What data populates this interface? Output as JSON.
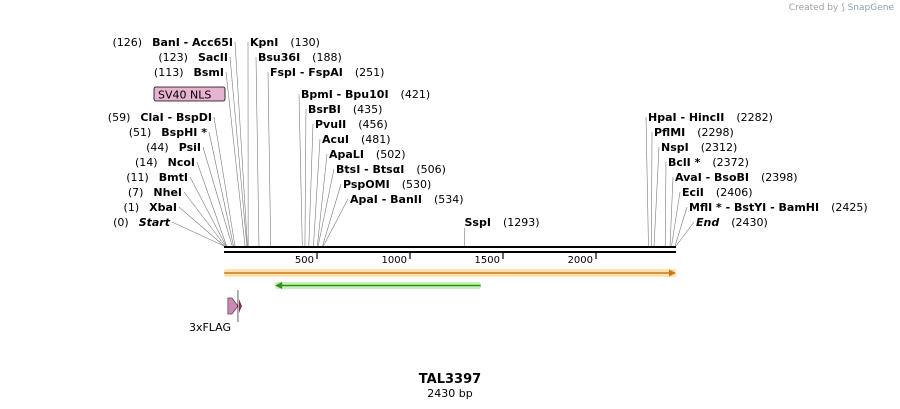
{
  "credit": {
    "prefix": "Created by",
    "brand": "SnapGene",
    "icon": "snapgene-logo-icon"
  },
  "title": "TAL3397",
  "length_label": "2430 bp",
  "sequence_length": 2430,
  "ruler_ticks": [
    "500",
    "1000",
    "1500",
    "2000"
  ],
  "feature_labels": {
    "nls": "SV40 NLS",
    "flag": "3xFLAG"
  },
  "features": [
    {
      "name": "SV40 NLS",
      "type": "NLS",
      "color": "#e8b3d0",
      "start": 99,
      "end": 119
    },
    {
      "name": "3xFLAG",
      "type": "tag",
      "color": "#c889b2",
      "start": 10,
      "end": 75,
      "direction": "forward"
    },
    {
      "name": "",
      "type": "ORF",
      "color": "#f5a623",
      "start": 1,
      "end": 2430,
      "direction": "forward"
    },
    {
      "name": "",
      "type": "ORF",
      "color": "#4fc226",
      "start": 275,
      "end": 1380,
      "direction": "reverse"
    }
  ],
  "left_sites": [
    {
      "name": "BanI",
      "name2": "Acc65I",
      "position": 126,
      "pos_label": "(126)"
    },
    {
      "name": "SacII",
      "position": 123,
      "pos_label": "(123)"
    },
    {
      "name": "BsmI",
      "position": 113,
      "pos_label": "(113)"
    },
    {
      "name": "ClaI",
      "name2": "BspDI",
      "position": 59,
      "pos_label": "(59)"
    },
    {
      "name": "BspHI",
      "star": "*",
      "position": 51,
      "pos_label": "(51)"
    },
    {
      "name": "PsiI",
      "position": 44,
      "pos_label": "(44)"
    },
    {
      "name": "NcoI",
      "position": 14,
      "pos_label": "(14)"
    },
    {
      "name": "BmtI",
      "position": 11,
      "pos_label": "(11)"
    },
    {
      "name": "NheI",
      "position": 7,
      "pos_label": "(7)"
    },
    {
      "name": "XbaI",
      "position": 1,
      "pos_label": "(1)"
    },
    {
      "name": "Start",
      "position": 0,
      "pos_label": "(0)",
      "italic": true
    }
  ],
  "right_sites": [
    {
      "name": "KpnI",
      "position": 130,
      "pos_label": "(130)"
    },
    {
      "name": "Bsu36I",
      "position": 188,
      "pos_label": "(188)"
    },
    {
      "name": "FspI",
      "name2": "FspAI",
      "position": 251,
      "pos_label": "(251)"
    },
    {
      "name": "BpmI",
      "name2": "Bpu10I",
      "position": 421,
      "pos_label": "(421)"
    },
    {
      "name": "BsrBI",
      "position": 435,
      "pos_label": "(435)"
    },
    {
      "name": "PvuII",
      "position": 456,
      "pos_label": "(456)"
    },
    {
      "name": "AcuI",
      "position": 481,
      "pos_label": "(481)"
    },
    {
      "name": "ApaLI",
      "position": 502,
      "pos_label": "(502)"
    },
    {
      "name": "BtsI",
      "name2": "BtsαI",
      "position": 506,
      "pos_label": "(506)"
    },
    {
      "name": "PspOMI",
      "position": 530,
      "pos_label": "(530)"
    },
    {
      "name": "ApaI",
      "name2": "BanII",
      "position": 534,
      "pos_label": "(534)"
    },
    {
      "name": "SspI",
      "position": 1293,
      "pos_label": "(1293)"
    },
    {
      "name": "HpaI",
      "name2": "HincII",
      "position": 2282,
      "pos_label": "(2282)"
    },
    {
      "name": "PflMI",
      "position": 2298,
      "pos_label": "(2298)"
    },
    {
      "name": "NspI",
      "position": 2312,
      "pos_label": "(2312)"
    },
    {
      "name": "BclI",
      "star": "*",
      "position": 2372,
      "pos_label": "(2372)"
    },
    {
      "name": "AvaI",
      "name2": "BsoBI",
      "position": 2398,
      "pos_label": "(2398)"
    },
    {
      "name": "EciI",
      "position": 2406,
      "pos_label": "(2406)"
    },
    {
      "name": "MflI",
      "star": "*",
      "name2": "BstYI",
      "name3": "BamHI",
      "position": 2425,
      "pos_label": "(2425)"
    },
    {
      "name": "End",
      "position": 2430,
      "pos_label": "(2430)",
      "italic": true
    }
  ]
}
